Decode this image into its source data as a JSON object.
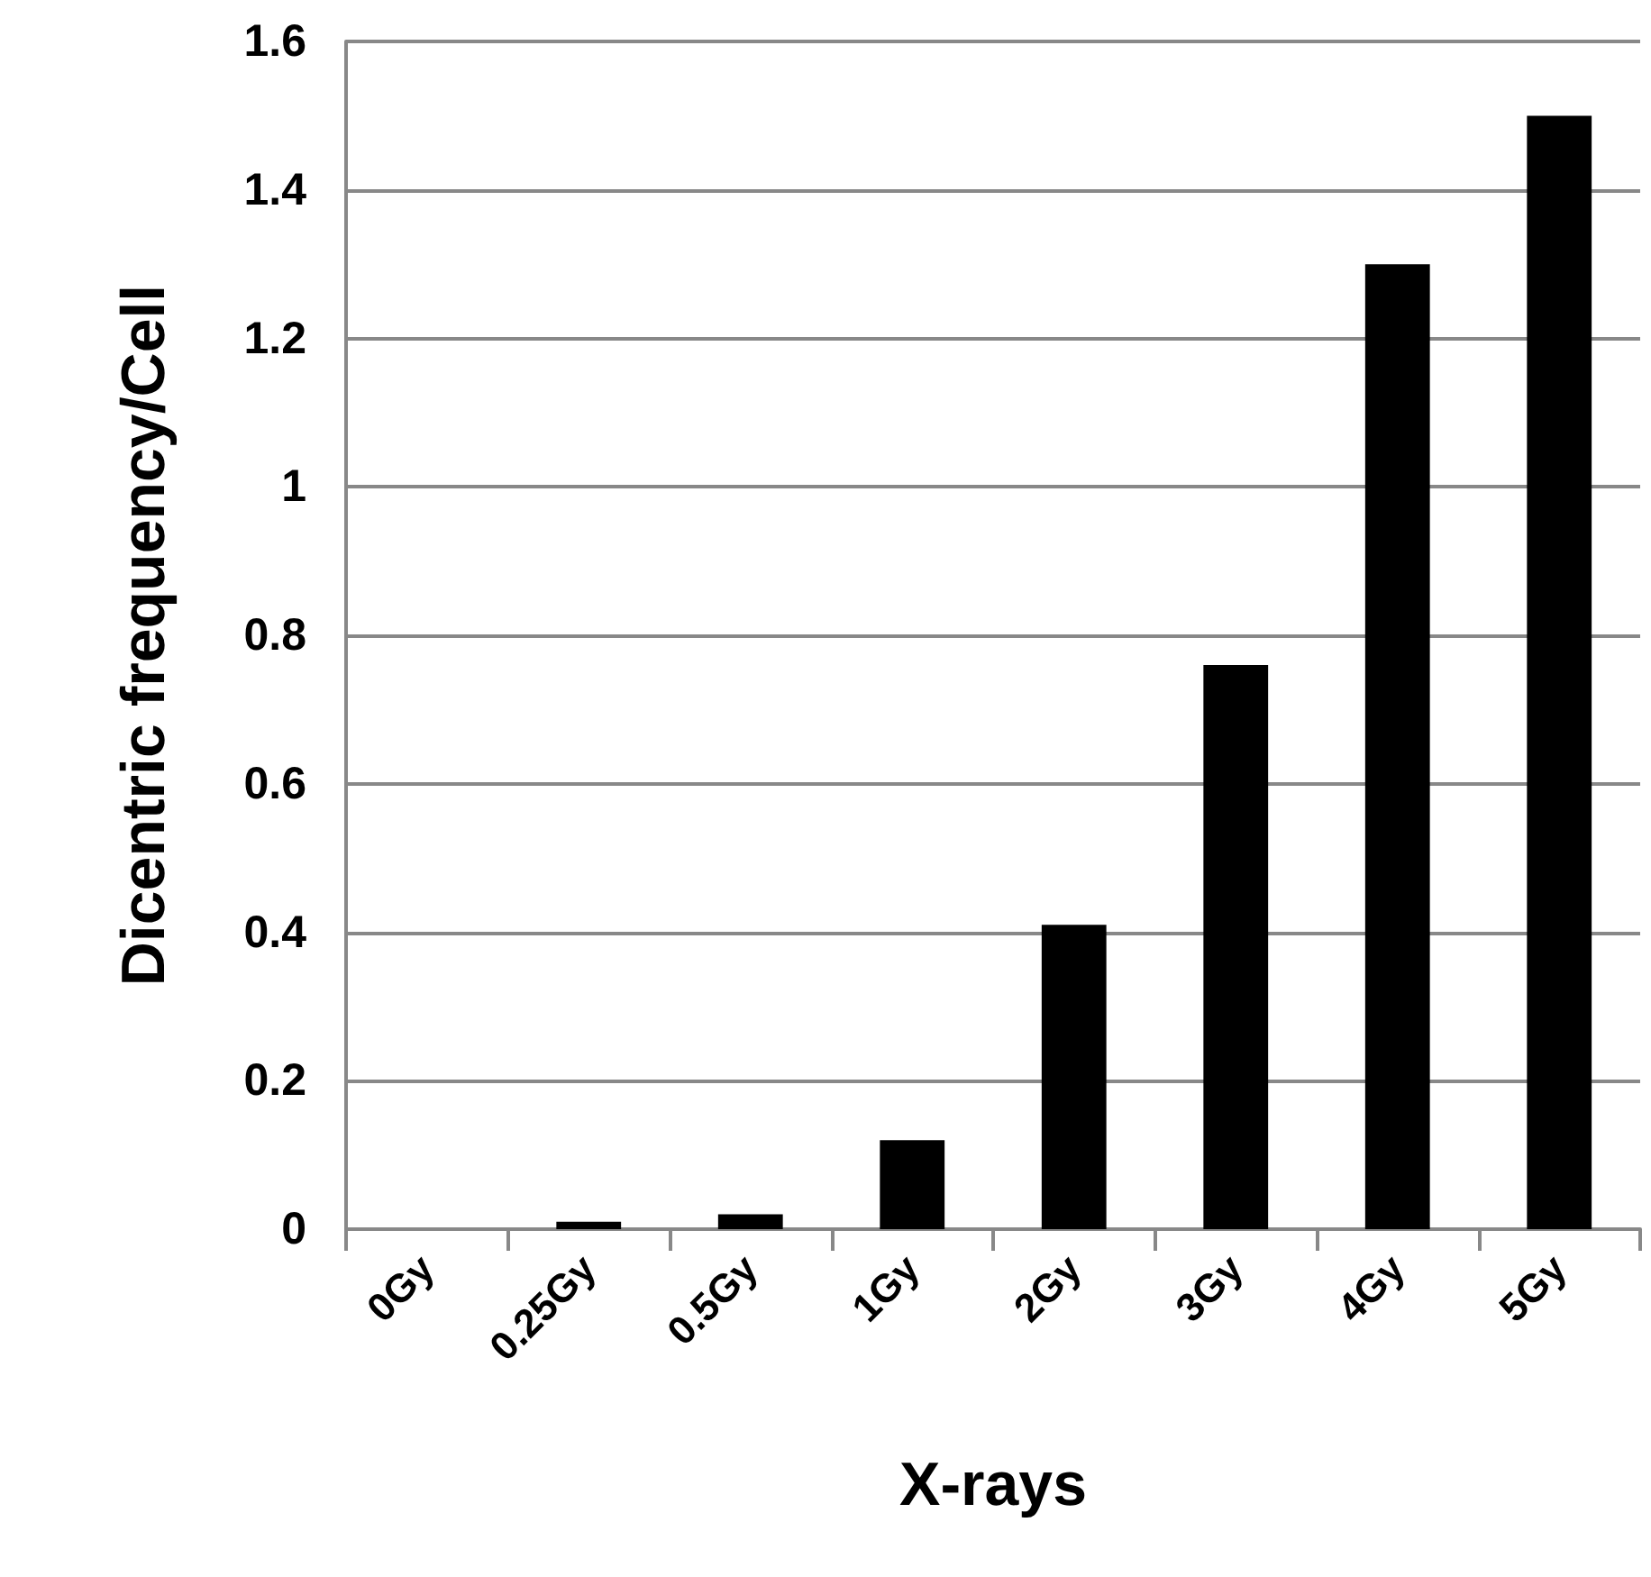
{
  "chart_data": {
    "type": "bar",
    "xlabel": "X-rays",
    "ylabel": "Dicentric frequency/Cell",
    "categories": [
      "0Gy",
      "0.25Gy",
      "0.5Gy",
      "1Gy",
      "2Gy",
      "3Gy",
      "4Gy",
      "5Gy"
    ],
    "values": [
      0,
      0.01,
      0.02,
      0.12,
      0.41,
      0.76,
      1.3,
      1.5
    ],
    "color": "#000000",
    "ylim": [
      0,
      1.6
    ],
    "yticks": [
      0,
      0.2,
      0.4,
      0.6,
      0.8,
      1,
      1.2,
      1.4,
      1.6
    ],
    "grid": "y"
  }
}
